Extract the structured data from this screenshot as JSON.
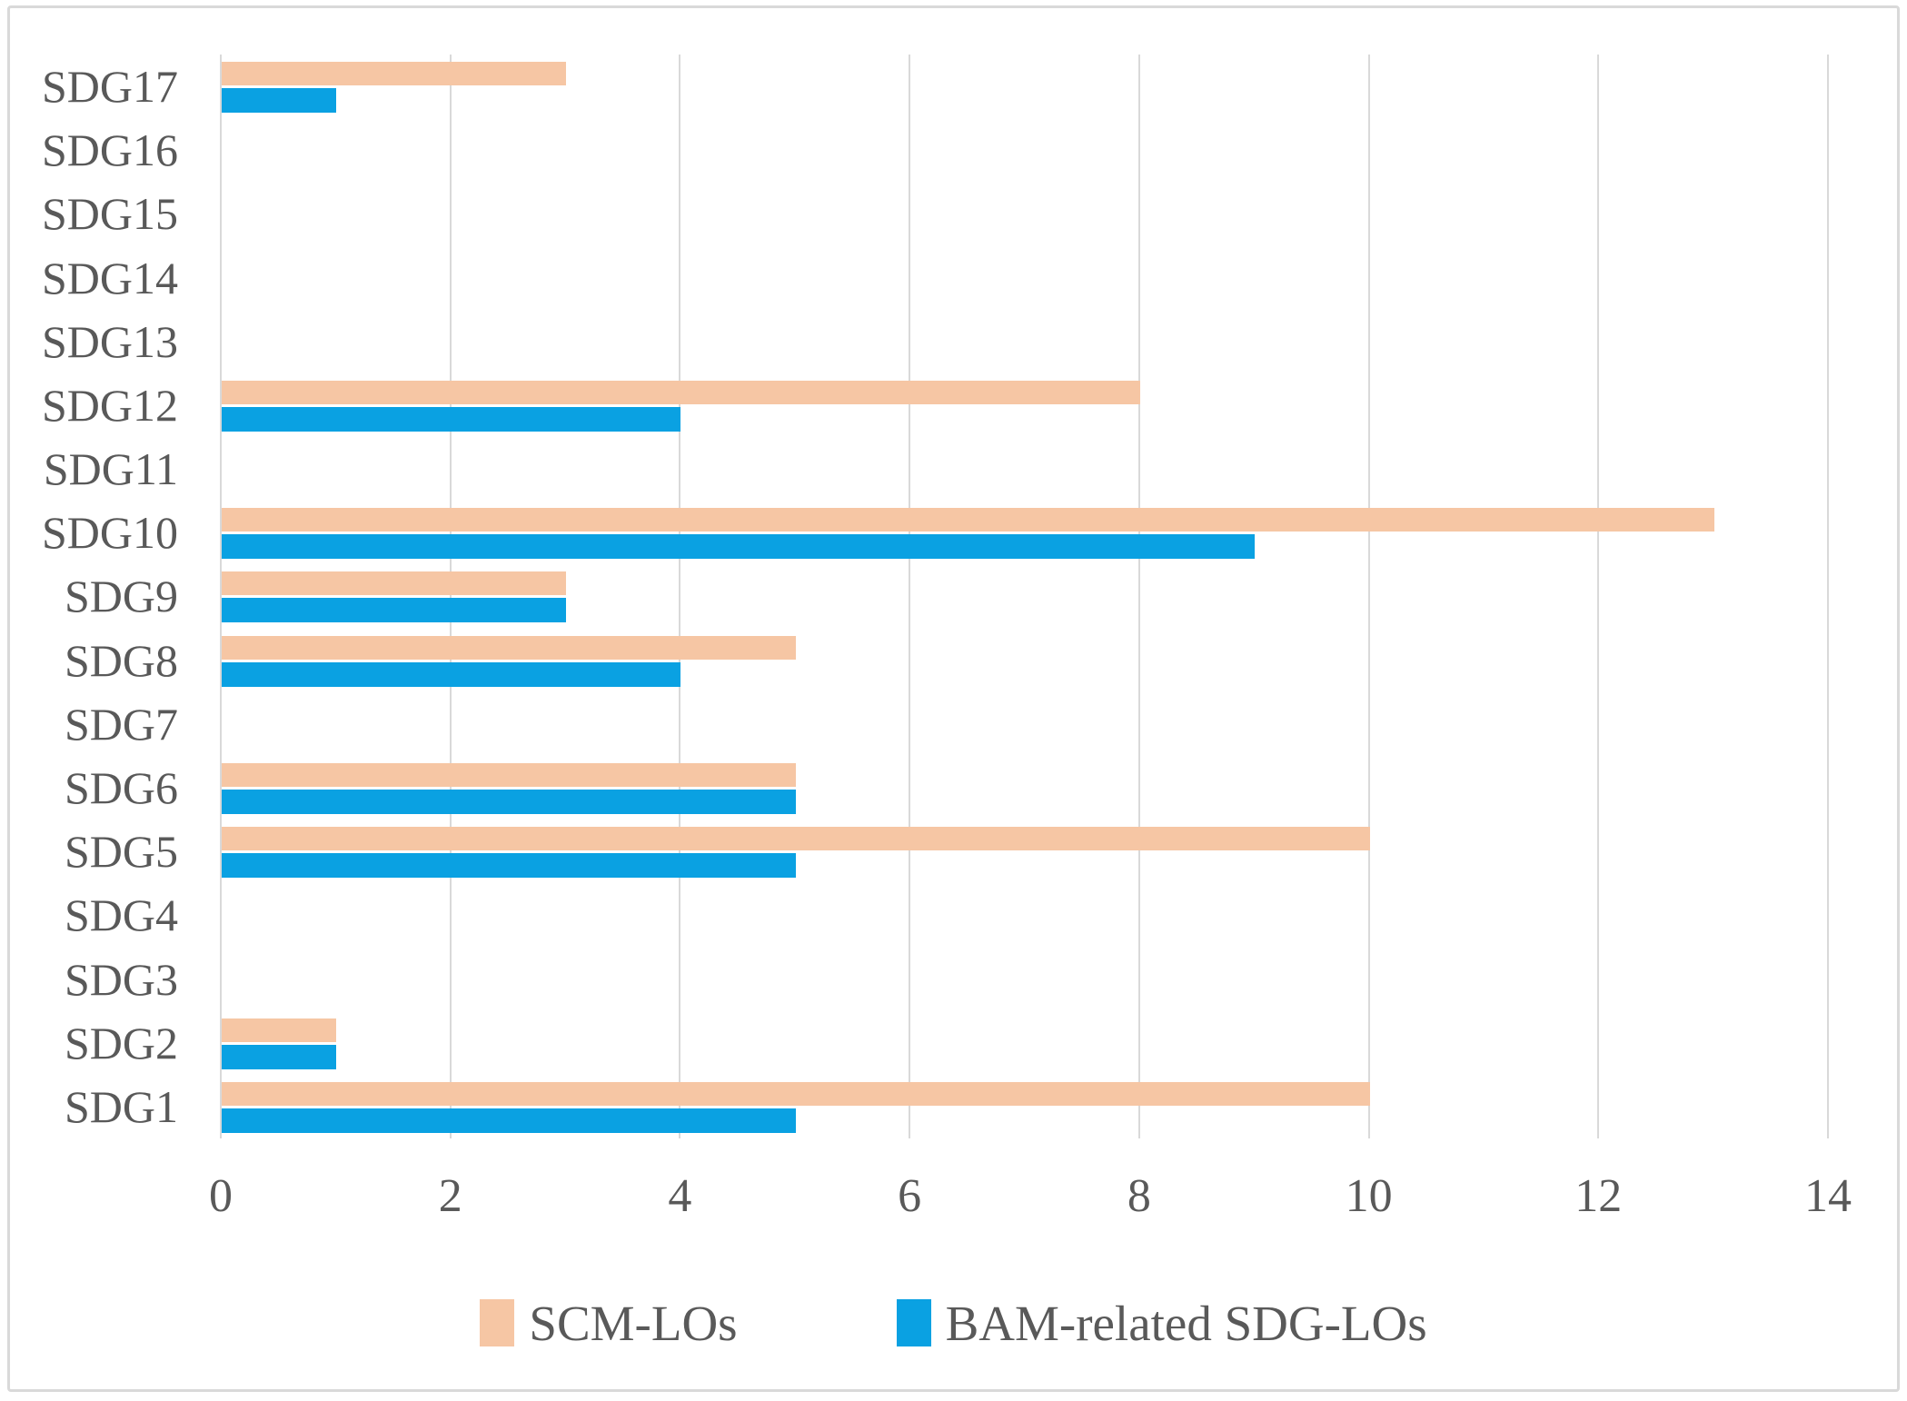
{
  "chart_data": {
    "type": "bar",
    "orientation": "horizontal",
    "title": "",
    "xlabel": "",
    "ylabel": "",
    "categories": [
      "SDG17",
      "SDG16",
      "SDG15",
      "SDG14",
      "SDG13",
      "SDG12",
      "SDG11",
      "SDG10",
      "SDG9",
      "SDG8",
      "SDG7",
      "SDG6",
      "SDG5",
      "SDG4",
      "SDG3",
      "SDG2",
      "SDG1"
    ],
    "series": [
      {
        "name": "SCM-LOs",
        "color": "#f6c6a4",
        "values": [
          3,
          0,
          0,
          0,
          0,
          8,
          0,
          13,
          3,
          5,
          0,
          5,
          10,
          0,
          0,
          1,
          10
        ]
      },
      {
        "name": "BAM-related SDG-LOs",
        "color": "#0aa1e2",
        "values": [
          1,
          0,
          0,
          0,
          0,
          4,
          0,
          9,
          3,
          4,
          0,
          5,
          5,
          0,
          0,
          1,
          5
        ]
      }
    ],
    "xlim": [
      0,
      14
    ],
    "x_ticks": [
      0,
      2,
      4,
      6,
      8,
      10,
      12,
      14
    ],
    "grid": true,
    "legend_position": "bottom",
    "colors": {
      "gridline": "#d9d9d9",
      "axis_text": "#595959",
      "frame_border": "#d9d9d9",
      "background": "#ffffff"
    }
  }
}
